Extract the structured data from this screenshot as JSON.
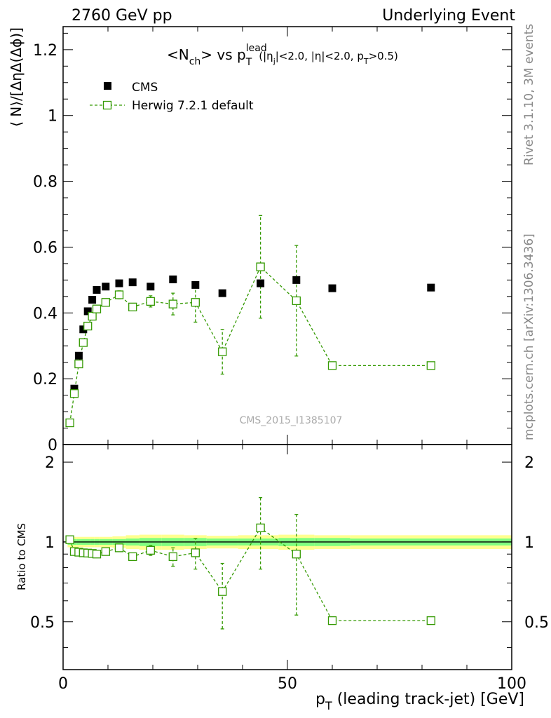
{
  "header": {
    "left": "2760 GeV pp",
    "right": "Underlying Event"
  },
  "side_labels": {
    "rivet": "Rivet 3.1.10,  3M events",
    "mcplots": "mcplots.cern.ch [arXiv:1306.3436]"
  },
  "colors": {
    "data": "#000000",
    "mc": "#339900",
    "band_inner": "#80ff80",
    "band_outer": "#ffff90"
  },
  "chart_data": [
    {
      "type": "scatter",
      "panel": "main",
      "title": {
        "base": "<N",
        "sub_ch": "ch",
        "vs": "> vs p",
        "sup_lead": "lead",
        "sub_T": "T",
        "cuts_a": "(|η",
        "cuts_j": "j",
        "cuts_b": "|<2.0, |η|<2.0, p",
        "cuts_T": "T",
        "cuts_c": ">0.5)"
      },
      "ylabel": "⟨ N⟩/[ΔηΔ(Δϕ)]",
      "xlim": [
        0,
        100
      ],
      "ylim": [
        0,
        1.27
      ],
      "yticks": [
        0,
        0.2,
        0.4,
        0.6,
        0.8,
        1,
        1.2
      ],
      "ytick_labels": [
        "0",
        "0.2",
        "0.4",
        "0.6",
        "0.8",
        "1",
        "1.2"
      ],
      "watermark": "CMS_2015_I1385107",
      "legend": [
        {
          "name": "CMS",
          "marker": "filled-square"
        },
        {
          "name": "Herwig 7.2.1 default",
          "marker": "open-square-dashed-line"
        }
      ],
      "series": [
        {
          "name": "CMS",
          "x": [
            1.5,
            2.5,
            3.5,
            4.5,
            5.5,
            6.5,
            7.5,
            9.5,
            12.5,
            15.5,
            19.5,
            24.5,
            29.5,
            35.5,
            44,
            52,
            60,
            82
          ],
          "y": [
            0.065,
            0.17,
            0.27,
            0.35,
            0.405,
            0.44,
            0.47,
            0.48,
            0.49,
            0.493,
            0.48,
            0.502,
            0.485,
            0.46,
            0.49,
            0.5,
            0.475,
            0.477
          ]
        },
        {
          "name": "Herwig 7.2.1 default",
          "x": [
            1.5,
            2.5,
            3.5,
            4.5,
            5.5,
            6.5,
            7.5,
            9.5,
            12.5,
            15.5,
            19.5,
            24.5,
            29.5,
            35.5,
            44,
            52,
            60,
            82
          ],
          "y": [
            0.066,
            0.155,
            0.245,
            0.31,
            0.36,
            0.39,
            0.412,
            0.432,
            0.455,
            0.418,
            0.435,
            0.427,
            0.432,
            0.282,
            0.54,
            0.437,
            0.24,
            0.24
          ],
          "yerr": [
            0.002,
            0.003,
            0.004,
            0.005,
            0.006,
            0.007,
            0.008,
            0.008,
            0.012,
            0.01,
            0.017,
            0.033,
            0.06,
            0.068,
            0.156,
            0.168,
            0.0,
            0.0
          ]
        }
      ]
    },
    {
      "type": "scatter",
      "panel": "ratio",
      "ylabel": "Ratio to CMS",
      "xlabel_base": "p",
      "xlabel_sub": "T",
      "xlabel_rest": " (leading track-jet) [GeV]",
      "xlim": [
        0,
        100
      ],
      "ylim": [
        0.33,
        2.33
      ],
      "yticks": [
        0.5,
        1,
        2
      ],
      "ytick_labels": [
        "0.5",
        "1",
        "2"
      ],
      "xticks": [
        0,
        50,
        100
      ],
      "xtick_labels": [
        "0",
        "50",
        "100"
      ],
      "band": {
        "x_edges": [
          1,
          2,
          3,
          4,
          5,
          6,
          7,
          8,
          11,
          14,
          17,
          22,
          27,
          32,
          39,
          48,
          56,
          64,
          100
        ],
        "inner": [
          0.025,
          0.025,
          0.025,
          0.025,
          0.025,
          0.025,
          0.025,
          0.025,
          0.025,
          0.03,
          0.035,
          0.035,
          0.035,
          0.03,
          0.03,
          0.035,
          0.035,
          0.03
        ],
        "outer": [
          0.045,
          0.045,
          0.045,
          0.045,
          0.045,
          0.045,
          0.045,
          0.045,
          0.05,
          0.06,
          0.065,
          0.065,
          0.06,
          0.055,
          0.06,
          0.065,
          0.06,
          0.06
        ]
      },
      "series": [
        {
          "name": "Herwig 7.2.1 default",
          "x": [
            1.5,
            2.5,
            3.5,
            4.5,
            5.5,
            6.5,
            7.5,
            9.5,
            12.5,
            15.5,
            19.5,
            24.5,
            29.5,
            35.5,
            44,
            52,
            60,
            82
          ],
          "y": [
            1.02,
            0.92,
            0.915,
            0.91,
            0.908,
            0.905,
            0.9,
            0.92,
            0.95,
            0.88,
            0.93,
            0.88,
            0.91,
            0.65,
            1.13,
            0.9,
            0.505,
            0.505
          ],
          "yerr": [
            0.01,
            0.01,
            0.01,
            0.01,
            0.012,
            0.012,
            0.014,
            0.015,
            0.025,
            0.02,
            0.04,
            0.07,
            0.12,
            0.18,
            0.34,
            0.37,
            0.0,
            0.0
          ]
        }
      ]
    }
  ]
}
